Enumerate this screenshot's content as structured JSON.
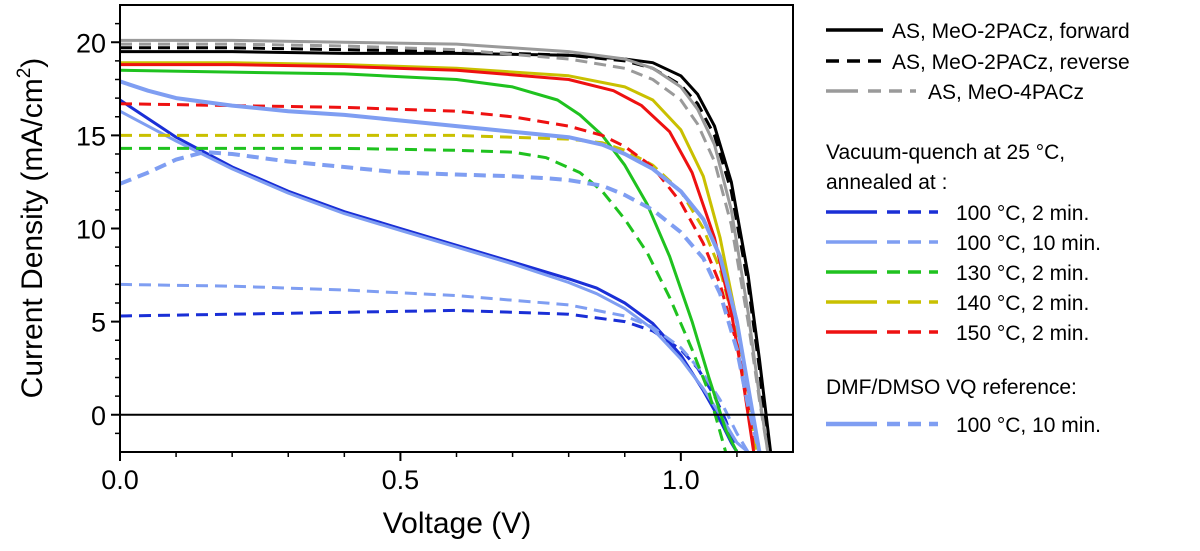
{
  "chart_data": {
    "type": "line",
    "title": "",
    "xlabel": "Voltage (V)",
    "ylabel": "Current Density (mA/cm",
    "ylabel_sup": "2",
    "ylabel_end": ")",
    "xlim": [
      0,
      1.2
    ],
    "ylim": [
      -2,
      22
    ],
    "x_ticks": [
      0.0,
      0.5,
      1.0
    ],
    "x_tick_labels": [
      "0.0",
      "0.5",
      "1.0"
    ],
    "y_ticks": [
      0,
      5,
      10,
      15,
      20
    ],
    "y_tick_labels": [
      "0",
      "5",
      "10",
      "15",
      "20"
    ],
    "zero_line": 0,
    "legend": {
      "position": "right",
      "entries": [
        {
          "label": "AS, MeO-2PACz, forward",
          "color": "#000000",
          "style": "solid"
        },
        {
          "label": "AS, MeO-2PACz, reverse",
          "color": "#000000",
          "style": "dashed"
        },
        {
          "label": "AS, MeO-4PACz",
          "color": "#9a9a9a",
          "style": "pair"
        }
      ],
      "group1_title_line1": "Vacuum-quench at 25 °C,",
      "group1_title_line2": "annealed at :",
      "group1": [
        {
          "label": "100 °C, 2 min.",
          "color": "#1a2fd6"
        },
        {
          "label": "100 °C, 10 min.",
          "color": "#7f9ef2"
        },
        {
          "label": "130 °C, 2 min.",
          "color": "#1fc21f"
        },
        {
          "label": "140 °C, 2 min.",
          "color": "#c9c000"
        },
        {
          "label": "150 °C, 2 min.",
          "color": "#ee1111"
        }
      ],
      "group2_title": "DMF/DMSO VQ reference:",
      "group2": [
        {
          "label": "100 °C, 10 min.",
          "color": "#7f9ef2"
        }
      ]
    },
    "series": [
      {
        "name": "AS, MeO-2PACz, forward",
        "color": "#000000",
        "dash": false,
        "width": 3,
        "x": [
          0,
          0.2,
          0.4,
          0.6,
          0.8,
          0.9,
          0.95,
          1.0,
          1.03,
          1.06,
          1.09,
          1.12,
          1.14,
          1.16
        ],
        "y": [
          19.5,
          19.5,
          19.4,
          19.4,
          19.3,
          19.1,
          18.9,
          18.2,
          17.2,
          15.5,
          12.5,
          7.5,
          3.0,
          -2.0
        ]
      },
      {
        "name": "AS, MeO-2PACz, reverse",
        "color": "#000000",
        "dash": true,
        "width": 3,
        "x": [
          0,
          0.2,
          0.4,
          0.6,
          0.8,
          0.9,
          0.95,
          1.0,
          1.03,
          1.06,
          1.09,
          1.12,
          1.14,
          1.155
        ],
        "y": [
          19.7,
          19.7,
          19.6,
          19.5,
          19.3,
          19.0,
          18.6,
          17.7,
          16.7,
          15.0,
          12.0,
          7.0,
          2.5,
          -2.0
        ]
      },
      {
        "name": "AS, MeO-4PACz, forward",
        "color": "#9a9a9a",
        "dash": false,
        "width": 3,
        "x": [
          0,
          0.2,
          0.4,
          0.6,
          0.8,
          0.9,
          0.95,
          1.0,
          1.03,
          1.06,
          1.09,
          1.12,
          1.14,
          1.155
        ],
        "y": [
          20.1,
          20.1,
          20.0,
          19.9,
          19.5,
          19.1,
          18.6,
          17.6,
          16.4,
          14.5,
          11.0,
          5.5,
          1.0,
          -2.0
        ]
      },
      {
        "name": "AS, MeO-4PACz, reverse",
        "color": "#9a9a9a",
        "dash": true,
        "width": 3,
        "x": [
          0,
          0.2,
          0.4,
          0.6,
          0.8,
          0.9,
          0.95,
          1.0,
          1.03,
          1.06,
          1.09,
          1.12,
          1.14,
          1.155
        ],
        "y": [
          19.9,
          19.9,
          19.8,
          19.6,
          19.1,
          18.6,
          18.0,
          16.9,
          15.6,
          13.6,
          10.2,
          5.0,
          0.8,
          -2.0
        ]
      },
      {
        "name": "100 °C, 2 min. forward",
        "color": "#1a2fd6",
        "dash": false,
        "width": 3,
        "x": [
          0,
          0.1,
          0.2,
          0.3,
          0.4,
          0.5,
          0.6,
          0.7,
          0.8,
          0.85,
          0.9,
          0.95,
          1.0,
          1.04,
          1.07,
          1.09,
          1.1
        ],
        "y": [
          16.9,
          14.9,
          13.3,
          12.0,
          10.9,
          10.0,
          9.1,
          8.2,
          7.3,
          6.8,
          6.0,
          4.9,
          3.2,
          1.3,
          -0.3,
          -1.5,
          -2.0
        ]
      },
      {
        "name": "100 °C, 2 min. reverse",
        "color": "#1a2fd6",
        "dash": true,
        "width": 3,
        "x": [
          0,
          0.2,
          0.4,
          0.6,
          0.8,
          0.9,
          0.95,
          1.0,
          1.03,
          1.06,
          1.08,
          1.1
        ],
        "y": [
          5.3,
          5.4,
          5.5,
          5.6,
          5.4,
          5.0,
          4.5,
          3.5,
          2.5,
          1.0,
          -0.3,
          -2.0
        ]
      },
      {
        "name": "100 °C, 10 min. forward",
        "color": "#7f9ef2",
        "dash": false,
        "width": 3,
        "x": [
          0,
          0.1,
          0.2,
          0.3,
          0.4,
          0.5,
          0.6,
          0.7,
          0.8,
          0.85,
          0.9,
          0.95,
          1.0,
          1.04,
          1.07,
          1.1,
          1.12
        ],
        "y": [
          16.3,
          14.7,
          13.2,
          11.9,
          10.8,
          9.9,
          9.0,
          8.1,
          7.1,
          6.5,
          5.7,
          4.6,
          3.0,
          1.4,
          0.0,
          -1.5,
          -2.0
        ]
      },
      {
        "name": "100 °C, 10 min. reverse",
        "color": "#7f9ef2",
        "dash": true,
        "width": 3,
        "x": [
          0,
          0.2,
          0.4,
          0.6,
          0.8,
          0.9,
          0.95,
          1.0,
          1.04,
          1.07,
          1.1,
          1.12
        ],
        "y": [
          7.0,
          6.9,
          6.7,
          6.4,
          5.9,
          5.3,
          4.7,
          3.6,
          2.2,
          0.8,
          -1.0,
          -2.0
        ]
      },
      {
        "name": "130 °C, 2 min. forward",
        "color": "#1fc21f",
        "dash": false,
        "width": 3,
        "x": [
          0,
          0.2,
          0.4,
          0.6,
          0.7,
          0.78,
          0.82,
          0.86,
          0.9,
          0.94,
          0.98,
          1.02,
          1.05,
          1.08,
          1.1
        ],
        "y": [
          18.5,
          18.4,
          18.3,
          18.0,
          17.6,
          16.9,
          16.1,
          15.0,
          13.4,
          11.3,
          8.5,
          5.0,
          2.0,
          -0.8,
          -2.0
        ]
      },
      {
        "name": "130 °C, 2 min. reverse",
        "color": "#1fc21f",
        "dash": true,
        "width": 3,
        "x": [
          0,
          0.2,
          0.4,
          0.6,
          0.7,
          0.76,
          0.82,
          0.86,
          0.9,
          0.94,
          0.98,
          1.02,
          1.05,
          1.08
        ],
        "y": [
          14.3,
          14.3,
          14.3,
          14.2,
          14.1,
          13.8,
          13.0,
          12.0,
          10.5,
          8.7,
          6.3,
          3.5,
          1.2,
          -2.0
        ]
      },
      {
        "name": "140 °C, 2 min. forward",
        "color": "#c9c000",
        "dash": false,
        "width": 3,
        "x": [
          0,
          0.2,
          0.4,
          0.6,
          0.8,
          0.9,
          0.95,
          1.0,
          1.04,
          1.07,
          1.1,
          1.12,
          1.14
        ],
        "y": [
          18.9,
          18.9,
          18.8,
          18.6,
          18.2,
          17.6,
          16.9,
          15.3,
          12.8,
          9.5,
          5.0,
          1.5,
          -2.0
        ]
      },
      {
        "name": "140 °C, 2 min. reverse",
        "color": "#c9c000",
        "dash": true,
        "width": 3,
        "x": [
          0,
          0.2,
          0.4,
          0.6,
          0.8,
          0.86,
          0.9,
          0.95,
          1.0,
          1.04,
          1.07,
          1.1,
          1.12,
          1.135
        ],
        "y": [
          15.0,
          15.0,
          15.0,
          15.0,
          14.8,
          14.6,
          14.2,
          13.4,
          12.0,
          10.0,
          7.8,
          4.3,
          1.2,
          -2.0
        ]
      },
      {
        "name": "150 °C, 2 min. forward",
        "color": "#ee1111",
        "dash": false,
        "width": 3,
        "x": [
          0,
          0.2,
          0.4,
          0.6,
          0.8,
          0.88,
          0.93,
          0.98,
          1.02,
          1.06,
          1.09,
          1.11,
          1.13
        ],
        "y": [
          18.8,
          18.8,
          18.7,
          18.5,
          18.0,
          17.4,
          16.6,
          15.2,
          13.0,
          9.5,
          5.5,
          2.0,
          -2.0
        ]
      },
      {
        "name": "150 °C, 2 min. reverse",
        "color": "#ee1111",
        "dash": true,
        "width": 3,
        "x": [
          0,
          0.2,
          0.4,
          0.6,
          0.7,
          0.8,
          0.86,
          0.9,
          0.95,
          1.0,
          1.04,
          1.07,
          1.1,
          1.12,
          1.13
        ],
        "y": [
          16.7,
          16.6,
          16.5,
          16.3,
          16.0,
          15.5,
          15.0,
          14.4,
          13.3,
          11.4,
          9.2,
          7.0,
          3.8,
          1.0,
          -2.0
        ]
      },
      {
        "name": "DMF/DMSO VQ reference forward",
        "color": "#7f9ef2",
        "dash": false,
        "width": 4,
        "x": [
          0,
          0.05,
          0.1,
          0.2,
          0.3,
          0.4,
          0.5,
          0.6,
          0.7,
          0.8,
          0.86,
          0.9,
          0.95,
          1.0,
          1.04,
          1.07,
          1.1,
          1.12,
          1.14
        ],
        "y": [
          17.9,
          17.4,
          17.0,
          16.6,
          16.3,
          16.1,
          15.8,
          15.5,
          15.2,
          14.9,
          14.5,
          14.0,
          13.2,
          12.0,
          10.5,
          8.5,
          5.0,
          1.5,
          -2.0
        ]
      },
      {
        "name": "DMF/DMSO VQ reference reverse",
        "color": "#7f9ef2",
        "dash": true,
        "width": 4,
        "x": [
          0,
          0.05,
          0.1,
          0.15,
          0.2,
          0.3,
          0.4,
          0.5,
          0.6,
          0.7,
          0.76,
          0.8,
          0.86,
          0.9,
          0.95,
          1.0,
          1.04,
          1.07,
          1.1,
          1.12,
          1.14
        ],
        "y": [
          12.4,
          13.0,
          13.7,
          14.1,
          14.0,
          13.6,
          13.3,
          13.0,
          12.9,
          12.8,
          12.7,
          12.6,
          12.3,
          11.8,
          11.0,
          9.8,
          8.4,
          6.5,
          3.5,
          0.5,
          -2.0
        ]
      }
    ]
  }
}
